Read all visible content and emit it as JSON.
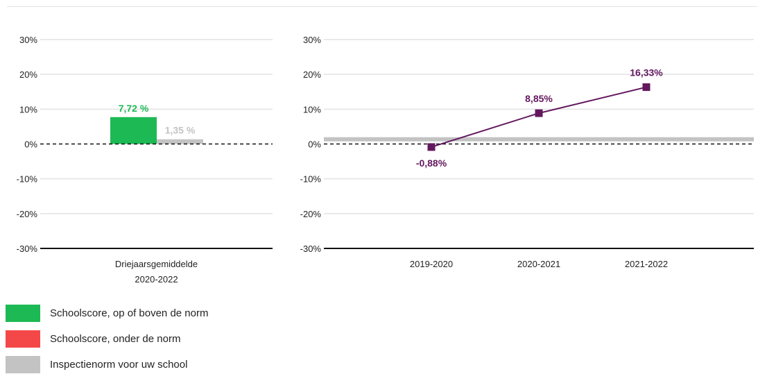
{
  "chart_data": [
    {
      "type": "bar",
      "categories": [
        "Driejaarsgemiddelde 2020-2022"
      ],
      "category_label_lines": [
        "Driejaarsgemiddelde",
        "2020-2022"
      ],
      "series": [
        {
          "name": "Schoolscore, op of boven de norm",
          "values": [
            7.72
          ],
          "value_labels": [
            "7,72 %"
          ],
          "color": "#1db954"
        },
        {
          "name": "Inspectienorm voor uw school",
          "values": [
            1.35
          ],
          "value_labels": [
            "1,35 %"
          ],
          "color": "#c3c3c3"
        }
      ],
      "ylim": [
        -30,
        30
      ],
      "yticks": [
        "30%",
        "20%",
        "10%",
        "0%",
        "-10%",
        "-20%",
        "-30%"
      ],
      "ytick_values": [
        30,
        20,
        10,
        0,
        -10,
        -20,
        -30
      ],
      "grid": true
    },
    {
      "type": "line",
      "x": [
        "2019-2020",
        "2020-2021",
        "2021-2022"
      ],
      "series": [
        {
          "values": [
            -0.88,
            8.85,
            16.33
          ],
          "value_labels": [
            "-0,88%",
            "8,85%",
            "16,33%"
          ],
          "color": "#63185e"
        }
      ],
      "norm": {
        "value": 1.35,
        "color": "#c3c3c3"
      },
      "ylim": [
        -30,
        30
      ],
      "yticks": [
        "30%",
        "20%",
        "10%",
        "0%",
        "-10%",
        "-20%",
        "-30%"
      ],
      "ytick_values": [
        30,
        20,
        10,
        0,
        -10,
        -20,
        -30
      ],
      "grid": true
    }
  ],
  "legend": [
    {
      "label": "Schoolscore, op of boven de norm",
      "color": "#1db954"
    },
    {
      "label": "Schoolscore, onder de norm",
      "color": "#f44848"
    },
    {
      "label": "Inspectienorm voor uw school",
      "color": "#c3c3c3"
    }
  ]
}
